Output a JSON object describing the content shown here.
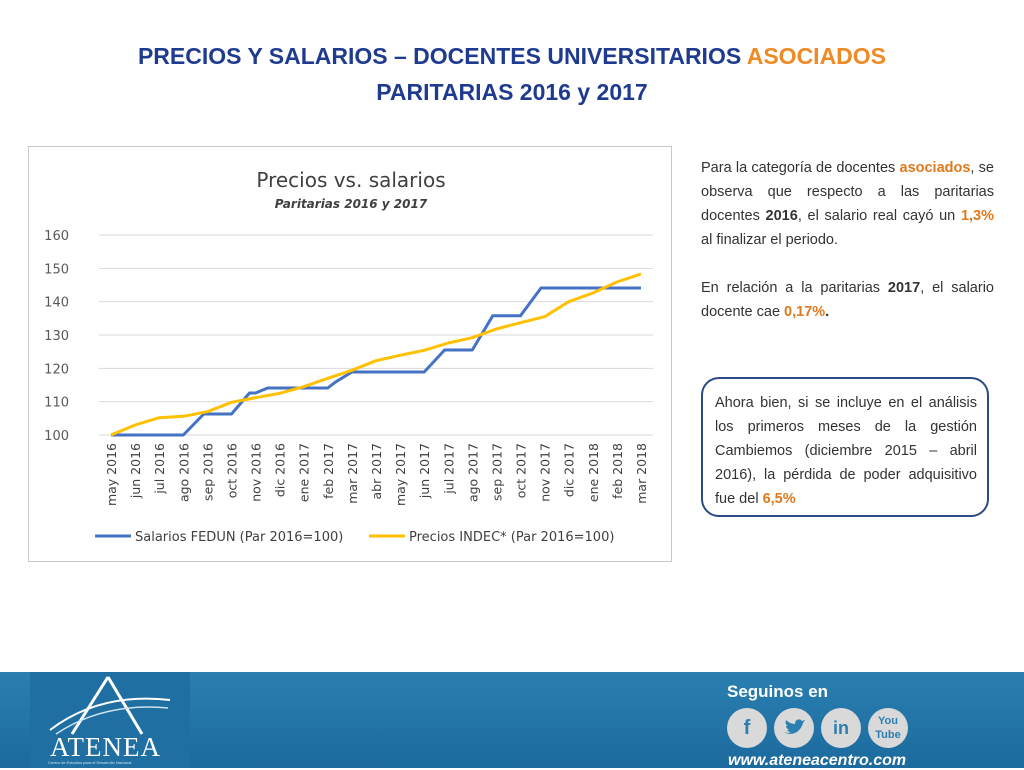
{
  "slide": {
    "title_line1_main": "PRECIOS Y SALARIOS – DOCENTES UNIVERSITARIOS",
    "title_line1_accent": "ASOCIADOS",
    "title_line2": "PARITARIAS 2016 y 2017"
  },
  "paragraph1": {
    "t1": "Para la categoría de docentes ",
    "t2": "asociados",
    "t3": ", se observa que respecto a las paritarias docentes ",
    "t4": "2016",
    "t5": ", el salario real cayó un ",
    "t6": "1,3%",
    "t7": " al finalizar el periodo."
  },
  "paragraph2": {
    "t1": "En relación a la paritarias ",
    "t2": "2017",
    "t3": ", el salario docente cae ",
    "t4": "0,17%",
    "t5": "."
  },
  "callout": {
    "t1": "Ahora bien, si se incluye en el análisis los primeros meses de la gestión Cambiemos (diciembre 2015 – abril 2016), la pérdida de poder adquisitivo fue del ",
    "t2": "6,5%"
  },
  "footer": {
    "logo_text": "ATENEA",
    "logo_subtitle": "Centro de Estudios para el Desarrollo Nacional",
    "follow_label": "Seguinos en",
    "social_icons": [
      "facebook-icon",
      "twitter-icon",
      "linkedin-icon",
      "youtube-icon"
    ],
    "url": "www.ateneacentro.com"
  },
  "chart_data": {
    "type": "line",
    "title": "Precios vs. salarios",
    "subtitle": "Paritarias 2016 y 2017",
    "ylim": [
      100,
      160
    ],
    "yticks": [
      100,
      110,
      120,
      130,
      140,
      150,
      160
    ],
    "grid": true,
    "legend_position": "bottom",
    "categories": [
      "may 2016",
      "jun 2016",
      "jul 2016",
      "ago 2016",
      "sep 2016",
      "oct 2016",
      "nov 2016",
      "dic 2016",
      "ene 2017",
      "feb 2017",
      "mar 2017",
      "abr 2017",
      "may 2017",
      "jun 2017",
      "jul 2017",
      "ago 2017",
      "sep 2017",
      "oct 2017",
      "nov 2017",
      "dic 2017",
      "ene 2018",
      "feb 2018",
      "mar 2018"
    ],
    "series": [
      {
        "name": "Salarios FEDUN (Par 2016=100)",
        "color": "#4472c4",
        "x": [
          0,
          1,
          2,
          3,
          3.85,
          4,
          5,
          5.75,
          6,
          6.5,
          7,
          8,
          9,
          9.3,
          10,
          11,
          12,
          13,
          13.85,
          14,
          15,
          15.85,
          16,
          17,
          17.85,
          18,
          19,
          20,
          21,
          22
        ],
        "values": [
          100,
          100,
          100,
          100,
          106.3,
          106.3,
          106.3,
          112.6,
          112.6,
          114.1,
          114.1,
          114.1,
          114.1,
          115.8,
          118.9,
          118.9,
          118.9,
          118.9,
          125.5,
          125.5,
          125.5,
          135.8,
          135.8,
          135.8,
          144.1,
          144.1,
          144.1,
          144.1,
          144.1,
          144.1
        ]
      },
      {
        "name": "Precios INDEC* (Par 2016=100)",
        "color": "#ffc000",
        "x": [
          0,
          1,
          2,
          3,
          4,
          5,
          6,
          7,
          8,
          9,
          10,
          11,
          12,
          13,
          14,
          15,
          16,
          17,
          18,
          19,
          20,
          21,
          22
        ],
        "values": [
          100,
          103,
          105.2,
          105.6,
          107,
          109.8,
          111.2,
          112.5,
          114.5,
          117,
          119.4,
          122.3,
          123.9,
          125.4,
          127.6,
          129.2,
          131.8,
          133.7,
          135.5,
          140,
          142.6,
          145.9,
          148.3
        ]
      }
    ]
  }
}
